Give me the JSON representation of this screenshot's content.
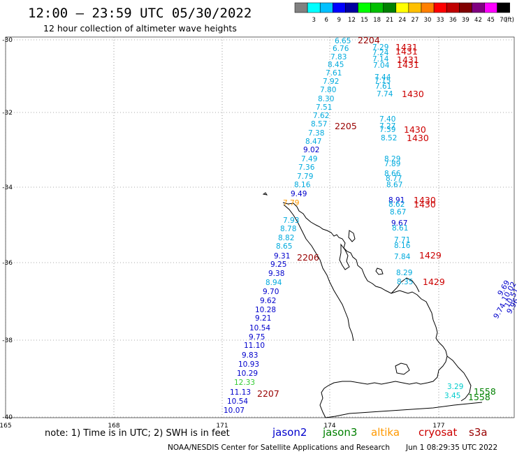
{
  "header": {
    "title": "12:00 – 23:59 UTC 05/30/2022",
    "subtitle": "12 hour collection of altimeter wave heights"
  },
  "legend": {
    "unit": "(ft)",
    "swatches": [
      {
        "label": "",
        "color": "#808080"
      },
      {
        "label": "3",
        "color": "#00ffff"
      },
      {
        "label": "6",
        "color": "#00c0ff"
      },
      {
        "label": "9",
        "color": "#0000ff"
      },
      {
        "label": "12",
        "color": "#0000a0"
      },
      {
        "label": "15",
        "color": "#00ff00"
      },
      {
        "label": "18",
        "color": "#00c000"
      },
      {
        "label": "21",
        "color": "#008000"
      },
      {
        "label": "24",
        "color": "#ffff00"
      },
      {
        "label": "27",
        "color": "#ffc000"
      },
      {
        "label": "30",
        "color": "#ff8000"
      },
      {
        "label": "33",
        "color": "#ff0000"
      },
      {
        "label": "36",
        "color": "#c00000"
      },
      {
        "label": "39",
        "color": "#800000"
      },
      {
        "label": "42",
        "color": "#800080"
      },
      {
        "label": "45",
        "color": "#ff00ff"
      },
      {
        "label": "70",
        "color": "#000000"
      }
    ]
  },
  "axes": {
    "lat_ticks": [
      "-30",
      "-32",
      "-34",
      "-36",
      "-38",
      "-40"
    ],
    "lon_ticks": [
      "165",
      "168",
      "171",
      "174",
      "177"
    ]
  },
  "track_colors": {
    "jason2": "#0000cc",
    "jason3": "#008000",
    "altika": "#ff9900",
    "cryosat": "#cc0000",
    "s3a": "#990000",
    "light": "#00aadd",
    "cyan": "#00cccc",
    "green": "#33cc33"
  },
  "tracks": {
    "west": [
      {
        "v": "6.65",
        "c": "light"
      },
      {
        "v": "6.76",
        "c": "light"
      },
      {
        "v": "7.83",
        "c": "light"
      },
      {
        "v": "8.45",
        "c": "light"
      },
      {
        "v": "7.61",
        "c": "light"
      },
      {
        "v": "7.92",
        "c": "light"
      },
      {
        "v": "7.80",
        "c": "light"
      },
      {
        "v": "8.30",
        "c": "light"
      },
      {
        "v": "7.51",
        "c": "light"
      },
      {
        "v": "7.62",
        "c": "light"
      },
      {
        "v": "8.57",
        "c": "light"
      },
      {
        "v": "7.38",
        "c": "light"
      },
      {
        "v": "8.47",
        "c": "light"
      },
      {
        "v": "9.02",
        "c": "jason2"
      },
      {
        "v": "7.49",
        "c": "light"
      },
      {
        "v": "7.36",
        "c": "light"
      },
      {
        "v": "7.79",
        "c": "light"
      },
      {
        "v": "8.16",
        "c": "light"
      },
      {
        "v": "9.49",
        "c": "jason2"
      },
      {
        "v": "7.79",
        "c": "altika"
      },
      {
        "v": "7.93",
        "c": "light"
      },
      {
        "v": "8.78",
        "c": "light"
      },
      {
        "v": "8.82",
        "c": "light"
      },
      {
        "v": "8.65",
        "c": "light"
      },
      {
        "v": "9.31",
        "c": "jason2"
      },
      {
        "v": "9.25",
        "c": "jason2"
      },
      {
        "v": "9.38",
        "c": "jason2"
      },
      {
        "v": "8.94",
        "c": "light"
      },
      {
        "v": "9.70",
        "c": "jason2"
      },
      {
        "v": "9.62",
        "c": "jason2"
      },
      {
        "v": "10.28",
        "c": "jason2"
      },
      {
        "v": "9.21",
        "c": "jason2"
      },
      {
        "v": "10.54",
        "c": "jason2"
      },
      {
        "v": "9.75",
        "c": "jason2"
      },
      {
        "v": "11.10",
        "c": "jason2"
      },
      {
        "v": "9.83",
        "c": "jason2"
      },
      {
        "v": "10.93",
        "c": "jason2"
      },
      {
        "v": "10.29",
        "c": "jason2"
      },
      {
        "v": "12.33",
        "c": "green"
      },
      {
        "v": "11.13",
        "c": "jason2"
      },
      {
        "v": "10.54",
        "c": "jason2"
      },
      {
        "v": "10.07",
        "c": "jason2"
      }
    ],
    "east": [
      {
        "v": "7.29",
        "c": "light"
      },
      {
        "v": "7.24",
        "c": "light"
      },
      {
        "v": "7.14",
        "c": "light"
      },
      {
        "v": "7.04",
        "c": "light"
      },
      {
        "v": "7.44",
        "c": "light"
      },
      {
        "v": "7.15",
        "c": "light"
      },
      {
        "v": "7.61",
        "c": "light"
      },
      {
        "v": "7.74",
        "c": "light"
      },
      {
        "v": "7.40",
        "c": "light"
      },
      {
        "v": "7.27",
        "c": "light"
      },
      {
        "v": "7.39",
        "c": "light"
      },
      {
        "v": "8.52",
        "c": "light"
      },
      {
        "v": "8.29",
        "c": "light"
      },
      {
        "v": "7.89",
        "c": "light"
      },
      {
        "v": "8.66",
        "c": "light"
      },
      {
        "v": "8.77",
        "c": "light"
      },
      {
        "v": "8.67",
        "c": "light"
      },
      {
        "v": "8.91",
        "c": "jason2"
      },
      {
        "v": "8.62",
        "c": "light"
      },
      {
        "v": "8.67",
        "c": "light"
      },
      {
        "v": "9.67",
        "c": "jason2"
      },
      {
        "v": "8.61",
        "c": "light"
      },
      {
        "v": "7.71",
        "c": "light"
      },
      {
        "v": "8.16",
        "c": "light"
      },
      {
        "v": "7.84",
        "c": "light"
      },
      {
        "v": "8.29",
        "c": "light"
      },
      {
        "v": "8.35",
        "c": "light"
      }
    ],
    "south_east": [
      {
        "v": "3.29",
        "c": "cyan"
      },
      {
        "v": "3.45",
        "c": "cyan"
      }
    ],
    "far_east": [
      {
        "v": "9.69",
        "c": "jason2"
      },
      {
        "v": "10.02",
        "c": "jason2"
      },
      {
        "v": "10.51",
        "c": "jason2"
      },
      {
        "v": "9.96",
        "c": "jason2"
      },
      {
        "v": "9.74",
        "c": "jason2"
      }
    ]
  },
  "time_labels": [
    {
      "t": "2204",
      "c": "s3a"
    },
    {
      "t": "1431",
      "c": "cryosat"
    },
    {
      "t": "1431",
      "c": "cryosat"
    },
    {
      "t": "1431",
      "c": "cryosat"
    },
    {
      "t": "1431",
      "c": "cryosat"
    },
    {
      "t": "1430",
      "c": "cryosat"
    },
    {
      "t": "2205",
      "c": "s3a"
    },
    {
      "t": "1430",
      "c": "cryosat"
    },
    {
      "t": "1430",
      "c": "cryosat"
    },
    {
      "t": "1430",
      "c": "cryosat"
    },
    {
      "t": "1430",
      "c": "cryosat"
    },
    {
      "t": "2206",
      "c": "s3a"
    },
    {
      "t": "1429",
      "c": "cryosat"
    },
    {
      "t": "1429",
      "c": "cryosat"
    },
    {
      "t": "2207",
      "c": "s3a"
    },
    {
      "t": "1558",
      "c": "jason3"
    },
    {
      "t": "1558",
      "c": "jason3"
    }
  ],
  "footer": {
    "note": "note:  1) Time is in UTC;  2) SWH is in feet",
    "satellites": [
      {
        "name": "jason2",
        "color": "#0000cc"
      },
      {
        "name": "jason3",
        "color": "#008000"
      },
      {
        "name": "altika",
        "color": "#ff9900"
      },
      {
        "name": "cryosat",
        "color": "#cc0000"
      },
      {
        "name": "s3a",
        "color": "#990000"
      }
    ],
    "credit": "NOAA/NESDIS Center for Satellite Applications and Research",
    "timestamp": "Jun  1 08:29:35 UTC 2022"
  }
}
